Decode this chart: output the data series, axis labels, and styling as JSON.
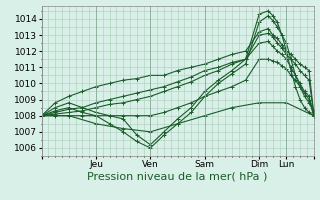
{
  "title": "",
  "xlabel": "Pression niveau de la mer( hPa )",
  "bg_color": "#d8f0e8",
  "plot_bg_color": "#d8f0e8",
  "grid_color": "#aaccbb",
  "line_color": "#1a5c2a",
  "ylim": [
    1005.5,
    1014.8
  ],
  "yticks": [
    1006,
    1007,
    1008,
    1009,
    1010,
    1011,
    1012,
    1013,
    1014
  ],
  "xlim": [
    0,
    120
  ],
  "xtick_positions": [
    0,
    24,
    48,
    72,
    96,
    108,
    120
  ],
  "xtick_labels": [
    "",
    "Jeu",
    "Ven",
    "Sam",
    "Dim",
    "Lun",
    ""
  ],
  "day_vlines": [
    0,
    24,
    48,
    72,
    96,
    108
  ],
  "lines": [
    {
      "x": [
        0,
        6,
        12,
        18,
        24,
        30,
        36,
        42,
        48,
        54,
        60,
        66,
        72,
        78,
        84,
        90,
        96,
        100,
        102,
        104,
        106,
        108,
        110,
        112,
        114,
        116,
        118,
        120
      ],
      "y": [
        1008.0,
        1008.5,
        1008.8,
        1008.5,
        1008.2,
        1008.0,
        1007.8,
        1006.8,
        1006.2,
        1007.0,
        1007.8,
        1008.5,
        1009.5,
        1010.2,
        1010.8,
        1011.5,
        1014.3,
        1014.5,
        1014.2,
        1013.8,
        1013.0,
        1012.5,
        1011.5,
        1010.5,
        1009.8,
        1009.2,
        1008.8,
        1008.3
      ]
    },
    {
      "x": [
        0,
        6,
        12,
        18,
        24,
        30,
        36,
        42,
        48,
        54,
        60,
        66,
        72,
        78,
        84,
        90,
        96,
        100,
        102,
        104,
        106,
        108,
        110,
        112,
        114,
        116,
        118,
        120
      ],
      "y": [
        1008.0,
        1008.3,
        1008.5,
        1008.2,
        1008.0,
        1007.5,
        1007.0,
        1006.4,
        1006.0,
        1006.8,
        1007.5,
        1008.2,
        1009.2,
        1010.0,
        1010.6,
        1011.2,
        1013.8,
        1014.2,
        1013.9,
        1013.5,
        1013.0,
        1012.0,
        1010.8,
        1009.8,
        1009.0,
        1008.5,
        1008.2,
        1008.0
      ]
    },
    {
      "x": [
        0,
        6,
        12,
        18,
        24,
        30,
        36,
        42,
        48,
        54,
        60,
        66,
        72,
        78,
        84,
        90,
        96,
        100,
        102,
        104,
        106,
        108,
        110,
        112,
        114,
        116,
        118,
        120
      ],
      "y": [
        1008.0,
        1008.2,
        1008.4,
        1008.5,
        1008.8,
        1009.0,
        1009.2,
        1009.4,
        1009.6,
        1009.8,
        1010.1,
        1010.4,
        1010.8,
        1011.0,
        1011.3,
        1011.5,
        1013.0,
        1013.1,
        1012.9,
        1012.5,
        1012.2,
        1011.8,
        1011.5,
        1011.2,
        1010.8,
        1010.5,
        1010.2,
        1008.2
      ]
    },
    {
      "x": [
        0,
        6,
        12,
        18,
        24,
        30,
        36,
        42,
        48,
        54,
        60,
        66,
        72,
        78,
        84,
        90,
        96,
        100,
        102,
        104,
        106,
        108,
        110,
        112,
        114,
        116,
        118,
        120
      ],
      "y": [
        1008.0,
        1008.1,
        1008.2,
        1008.3,
        1008.5,
        1008.7,
        1008.8,
        1009.0,
        1009.2,
        1009.5,
        1009.8,
        1010.1,
        1010.5,
        1010.8,
        1011.2,
        1011.5,
        1012.5,
        1012.6,
        1012.3,
        1012.0,
        1011.8,
        1011.5,
        1011.0,
        1010.5,
        1010.0,
        1009.5,
        1009.2,
        1008.1
      ]
    },
    {
      "x": [
        0,
        6,
        12,
        18,
        24,
        30,
        36,
        42,
        48,
        54,
        60,
        66,
        72,
        78,
        84,
        90,
        96,
        100,
        102,
        104,
        106,
        108,
        110,
        112,
        114,
        116,
        118,
        120
      ],
      "y": [
        1008.0,
        1008.0,
        1008.0,
        1008.0,
        1008.0,
        1008.0,
        1008.0,
        1008.0,
        1008.0,
        1008.2,
        1008.5,
        1008.8,
        1009.2,
        1009.5,
        1009.8,
        1010.2,
        1011.5,
        1011.5,
        1011.4,
        1011.3,
        1011.1,
        1010.9,
        1010.5,
        1010.2,
        1009.8,
        1009.4,
        1009.0,
        1008.0
      ]
    },
    {
      "x": [
        0,
        6,
        12,
        18,
        24,
        30,
        36,
        42,
        48,
        54,
        60,
        66,
        72,
        78,
        84,
        90,
        96,
        100,
        102,
        104,
        106,
        108,
        110,
        112,
        114,
        116,
        118,
        120
      ],
      "y": [
        1008.0,
        1008.8,
        1009.2,
        1009.5,
        1009.8,
        1010.0,
        1010.2,
        1010.3,
        1010.5,
        1010.5,
        1010.8,
        1011.0,
        1011.2,
        1011.5,
        1011.8,
        1012.0,
        1013.2,
        1013.4,
        1013.0,
        1012.8,
        1012.4,
        1012.0,
        1011.8,
        1011.5,
        1011.2,
        1011.0,
        1010.8,
        1008.2
      ]
    },
    {
      "x": [
        0,
        12,
        24,
        36,
        48,
        60,
        72,
        84,
        96,
        108,
        120
      ],
      "y": [
        1008.0,
        1008.0,
        1007.5,
        1007.2,
        1007.0,
        1007.5,
        1008.0,
        1008.5,
        1008.8,
        1008.8,
        1008.0
      ]
    }
  ],
  "marker": "+",
  "marker_size": 3,
  "line_width": 0.8,
  "xlabel_fontsize": 8,
  "tick_fontsize": 6.5,
  "ytick_minor": 0.5,
  "xtick_minor": 3
}
